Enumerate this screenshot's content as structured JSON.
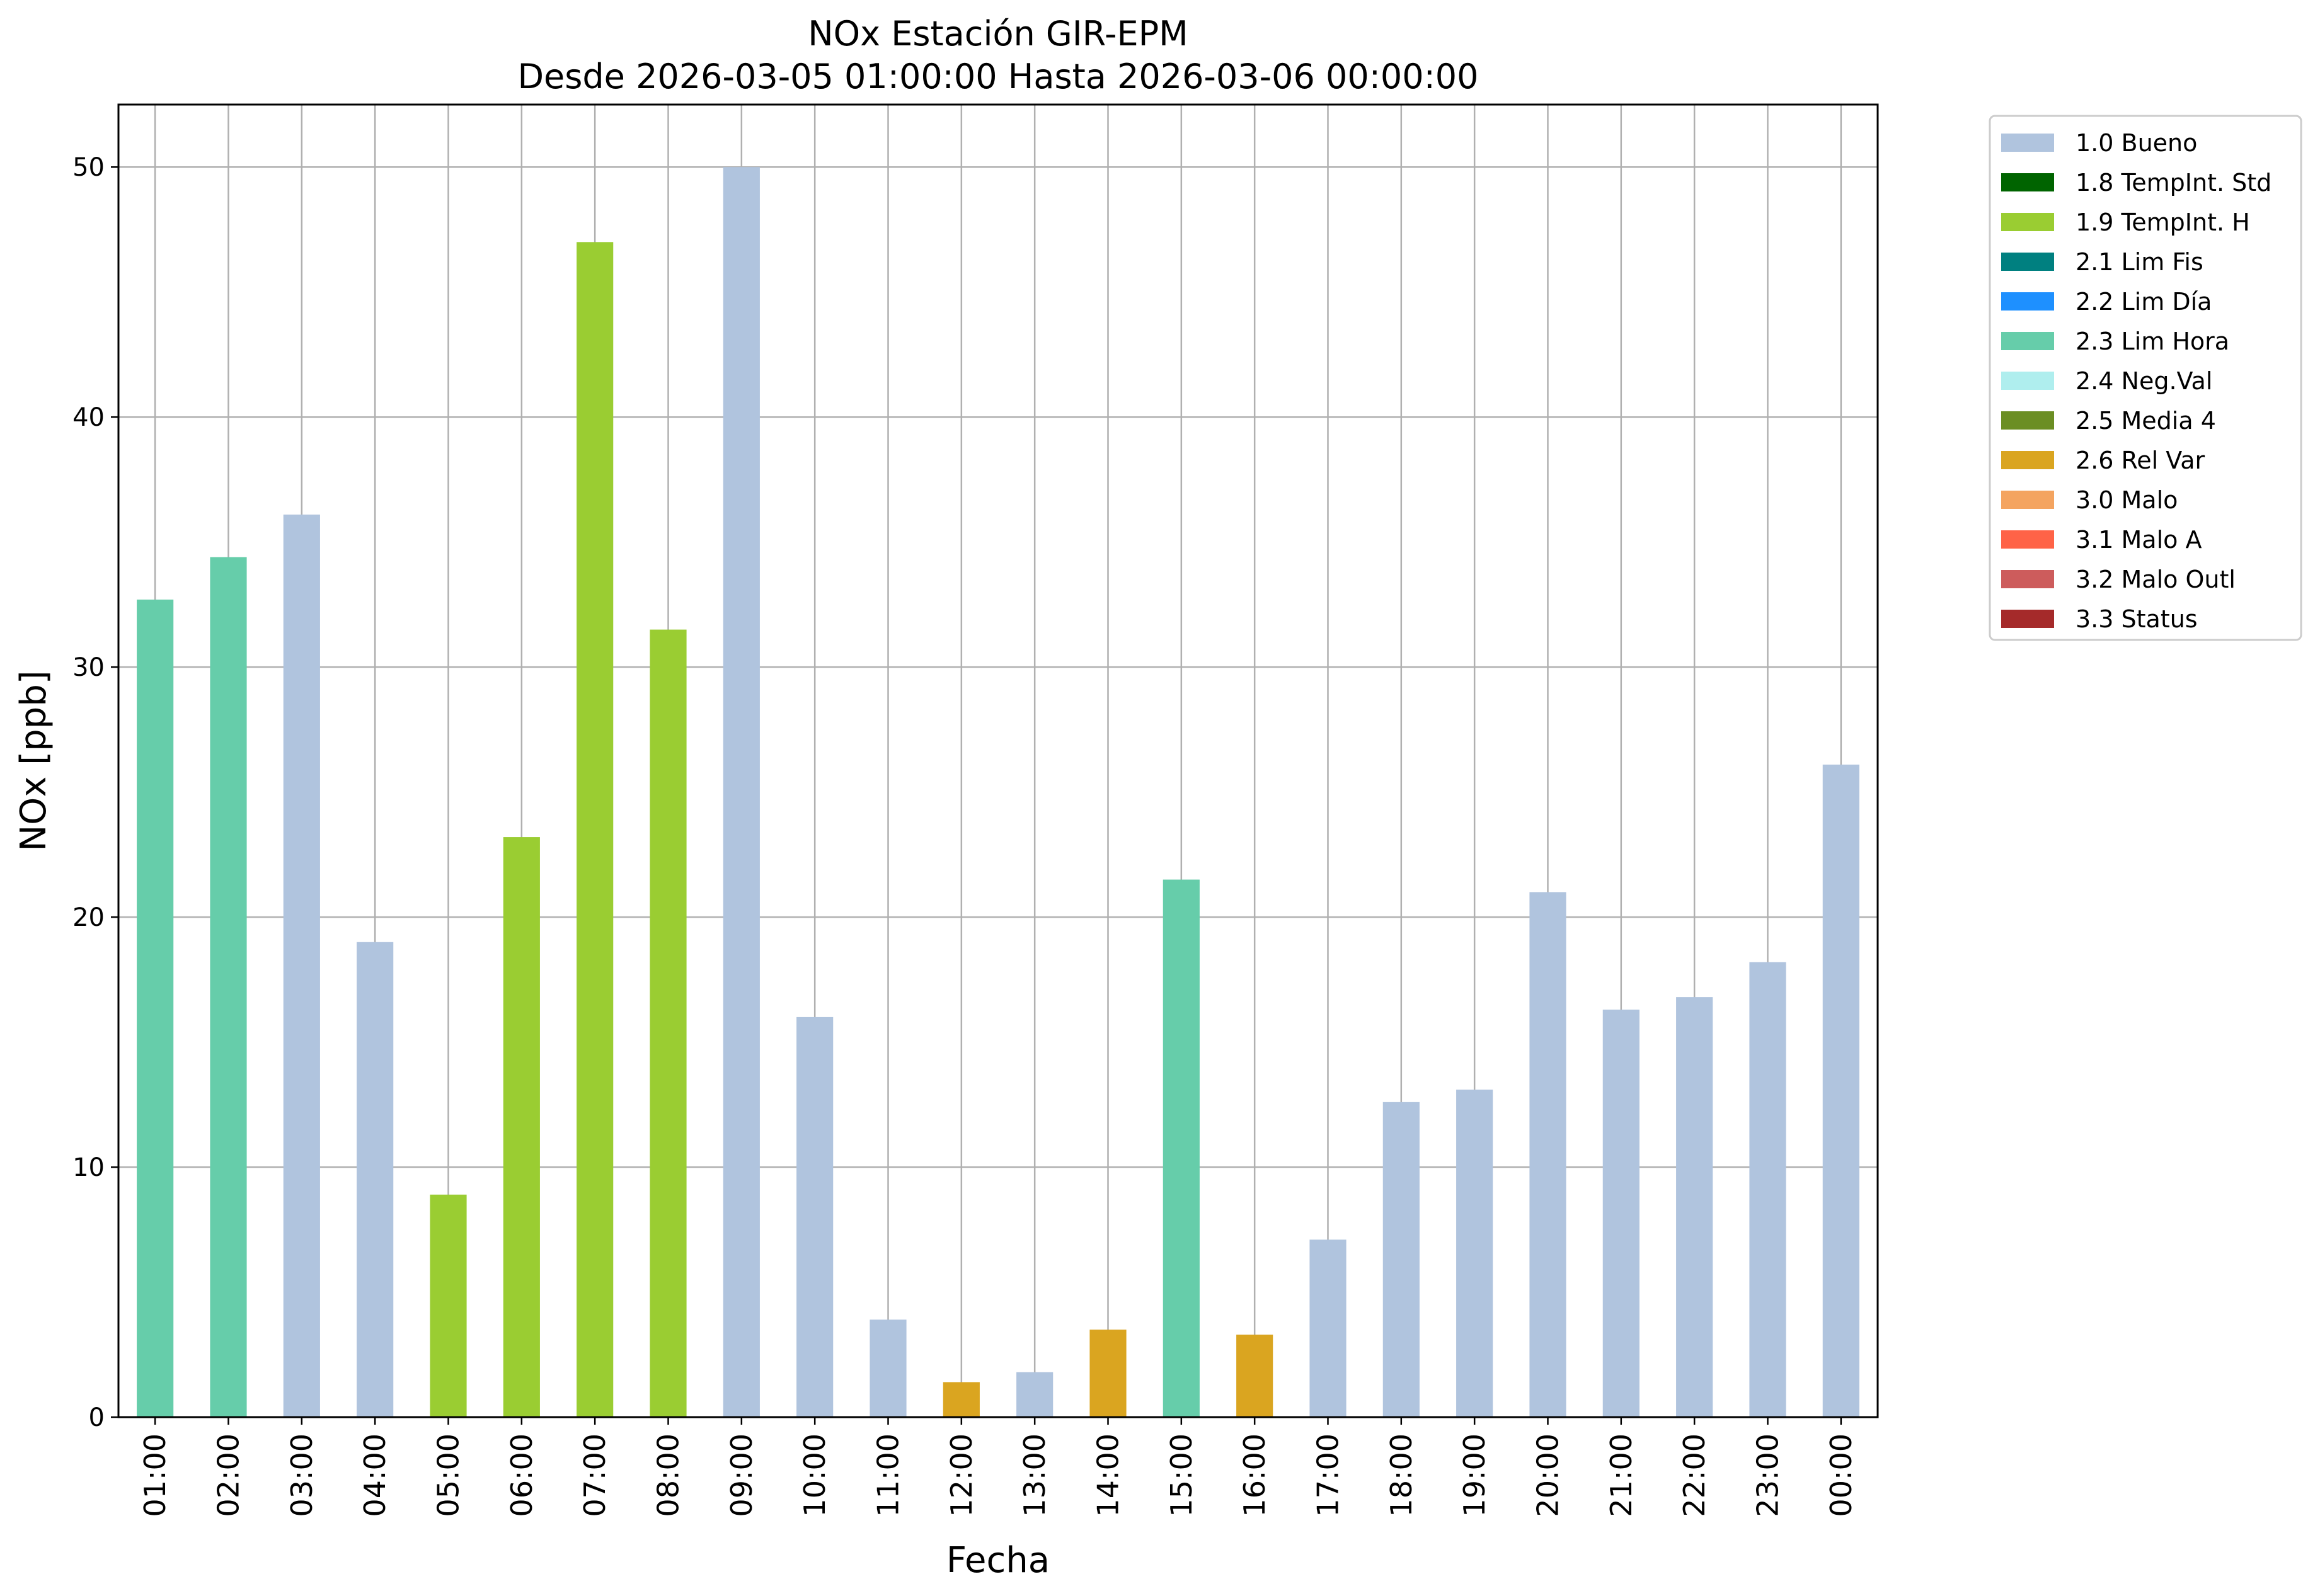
{
  "chart_data": {
    "type": "bar",
    "title": "NOx Estación GIR-EPM",
    "subtitle": "Desde 2026-03-05 01:00:00 Hasta 2026-03-06 00:00:00",
    "xlabel": "Fecha",
    "ylabel": "NOx [ppb]",
    "ylim": [
      0,
      52.5
    ],
    "yticks": [
      "0",
      "10",
      "20",
      "30",
      "40",
      "50"
    ],
    "grid": true,
    "legend_position": "outside-top-right",
    "categories": [
      "01:00",
      "02:00",
      "03:00",
      "04:00",
      "05:00",
      "06:00",
      "07:00",
      "08:00",
      "09:00",
      "10:00",
      "11:00",
      "12:00",
      "13:00",
      "14:00",
      "15:00",
      "16:00",
      "17:00",
      "18:00",
      "19:00",
      "20:00",
      "21:00",
      "22:00",
      "23:00",
      "00:00"
    ],
    "values": [
      32.7,
      34.4,
      36.1,
      19.0,
      8.9,
      23.2,
      47.0,
      31.5,
      50.0,
      16.0,
      3.9,
      1.4,
      1.8,
      3.5,
      21.5,
      3.3,
      7.1,
      12.6,
      13.1,
      21.0,
      16.3,
      16.8,
      18.2,
      26.1
    ],
    "flags": [
      "2.3 Lim Hora",
      "2.3 Lim Hora",
      "1.0 Bueno",
      "1.0 Bueno",
      "1.9 TempInt. H",
      "1.9 TempInt. H",
      "1.9 TempInt. H",
      "1.9 TempInt. H",
      "1.0 Bueno",
      "1.0 Bueno",
      "1.0 Bueno",
      "2.6 Rel Var",
      "1.0 Bueno",
      "2.6 Rel Var",
      "2.3 Lim Hora",
      "2.6 Rel Var",
      "1.0 Bueno",
      "1.0 Bueno",
      "1.0 Bueno",
      "1.0 Bueno",
      "1.0 Bueno",
      "1.0 Bueno",
      "1.0 Bueno",
      "1.0 Bueno"
    ],
    "legend": [
      {
        "name": "1.0 Bueno",
        "color": "#b0c4de"
      },
      {
        "name": "1.8 TempInt. Std",
        "color": "#006400"
      },
      {
        "name": "1.9 TempInt. H",
        "color": "#9acd32"
      },
      {
        "name": "2.1 Lim Fis",
        "color": "#008080"
      },
      {
        "name": "2.2 Lim Día",
        "color": "#1e90ff"
      },
      {
        "name": "2.3 Lim Hora",
        "color": "#66cdaa"
      },
      {
        "name": "2.4 Neg.Val",
        "color": "#afeeee"
      },
      {
        "name": "2.5 Media 4",
        "color": "#6b8e23"
      },
      {
        "name": "2.6 Rel Var",
        "color": "#daa520"
      },
      {
        "name": "3.0 Malo",
        "color": "#f4a460"
      },
      {
        "name": "3.1 Malo A",
        "color": "#ff6347"
      },
      {
        "name": "3.2 Malo Outl",
        "color": "#cd5c5c"
      },
      {
        "name": "3.3 Status",
        "color": "#a52a2a"
      }
    ]
  }
}
